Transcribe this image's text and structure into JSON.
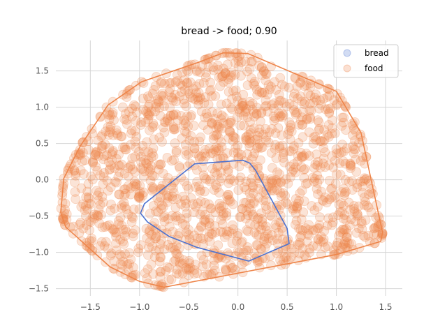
{
  "chart_data": {
    "type": "scatter",
    "title": "bread -> food; 0.90",
    "xlabel": "",
    "ylabel": "",
    "xlim": [
      -1.85,
      1.67
    ],
    "ylim": [
      -1.6,
      1.92
    ],
    "x_ticks": [
      -1.5,
      -1.0,
      -0.5,
      0.0,
      0.5,
      1.0,
      1.5
    ],
    "x_tick_labels": [
      "−1.5",
      "−1.0",
      "−0.5",
      "0.0",
      "0.5",
      "1.0",
      "1.5"
    ],
    "y_ticks": [
      -1.5,
      -1.0,
      -0.5,
      0.0,
      0.5,
      1.0,
      1.5
    ],
    "y_tick_labels": [
      "−1.5",
      "−1.0",
      "−0.5",
      "0.0",
      "0.5",
      "1.0",
      "1.5"
    ],
    "grid": true,
    "legend_position": "top-right",
    "series": [
      {
        "name": "bread",
        "color": "#4c72d0",
        "hull": [
          [
            0.05,
            0.27
          ],
          [
            0.12,
            0.23
          ],
          [
            0.18,
            0.13
          ],
          [
            0.5,
            -0.67
          ],
          [
            0.52,
            -0.88
          ],
          [
            0.11,
            -1.12
          ],
          [
            -0.42,
            -0.93
          ],
          [
            -0.7,
            -0.78
          ],
          [
            -0.92,
            -0.58
          ],
          [
            -0.99,
            -0.46
          ],
          [
            -0.95,
            -0.33
          ],
          [
            -0.44,
            0.22
          ]
        ]
      },
      {
        "name": "food",
        "color": "#ee854a",
        "hull": [
          [
            -0.15,
            1.75
          ],
          [
            0.1,
            1.74
          ],
          [
            1.0,
            1.22
          ],
          [
            1.25,
            0.65
          ],
          [
            1.47,
            -0.73
          ],
          [
            1.45,
            -0.85
          ],
          [
            1.0,
            -1.03
          ],
          [
            -0.75,
            -1.48
          ],
          [
            -1.0,
            -1.4
          ],
          [
            -1.3,
            -1.2
          ],
          [
            -1.75,
            -0.65
          ],
          [
            -1.8,
            -0.45
          ],
          [
            -1.77,
            0.02
          ],
          [
            -1.6,
            0.47
          ],
          [
            -1.32,
            1.03
          ],
          [
            -0.98,
            1.35
          ],
          [
            -0.4,
            1.62
          ]
        ]
      }
    ]
  }
}
